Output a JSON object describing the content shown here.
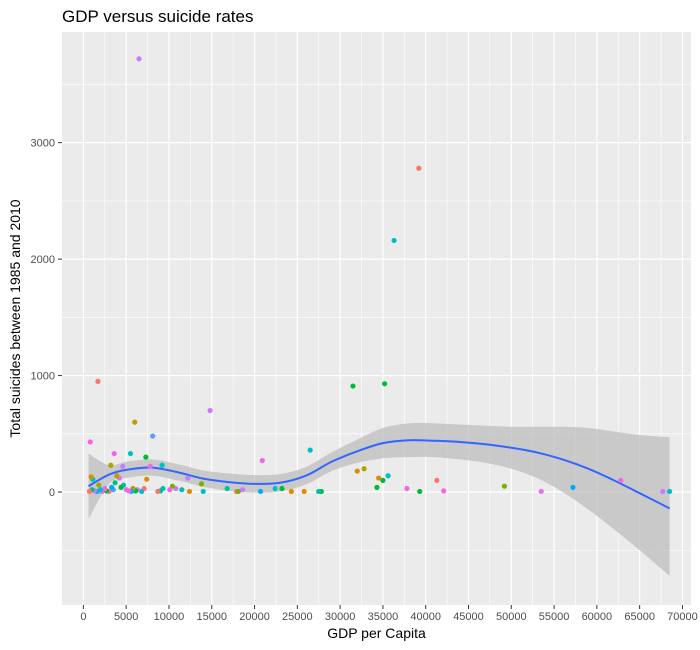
{
  "chart_data": {
    "type": "scatter",
    "title": "GDP versus suicide rates",
    "xlabel": "GDP per Capita",
    "ylabel": "Total suicides between 1985 and 2010",
    "xlim": [
      -2500,
      71000
    ],
    "ylim": [
      -970,
      3950
    ],
    "x_ticks": [
      0,
      5000,
      10000,
      15000,
      20000,
      25000,
      30000,
      35000,
      40000,
      45000,
      50000,
      55000,
      60000,
      65000,
      70000
    ],
    "x_tick_labels": [
      "0",
      "5000",
      "10000",
      "15000",
      "20000",
      "25000",
      "30000",
      "35000",
      "40000",
      "45000",
      "50000",
      "55000",
      "60000",
      "65000",
      "70000"
    ],
    "y_ticks": [
      0,
      1000,
      2000,
      3000
    ],
    "y_tick_labels": [
      "0",
      "1000",
      "2000",
      "3000"
    ],
    "grid": true,
    "legend": "none",
    "colors": {
      "panel": "#ebebeb",
      "grid": "#ffffff",
      "smooth_line": "#3366ff",
      "ribbon": "#bdbdbd"
    },
    "points": [
      {
        "x": 6500,
        "y": 3720,
        "color": "#c77cff"
      },
      {
        "x": 39200,
        "y": 2780,
        "color": "#f8766d"
      },
      {
        "x": 36300,
        "y": 2160,
        "color": "#00bfc4"
      },
      {
        "x": 35200,
        "y": 930,
        "color": "#00ba38"
      },
      {
        "x": 31500,
        "y": 910,
        "color": "#00ba38"
      },
      {
        "x": 1700,
        "y": 950,
        "color": "#f8766d"
      },
      {
        "x": 14800,
        "y": 700,
        "color": "#c77cff"
      },
      {
        "x": 6000,
        "y": 600,
        "color": "#b79f00"
      },
      {
        "x": 8100,
        "y": 480,
        "color": "#619cff"
      },
      {
        "x": 800,
        "y": 430,
        "color": "#f564e3"
      },
      {
        "x": 26500,
        "y": 360,
        "color": "#00bfc4"
      },
      {
        "x": 5500,
        "y": 330,
        "color": "#00bfc4"
      },
      {
        "x": 3600,
        "y": 330,
        "color": "#f564e3"
      },
      {
        "x": 7300,
        "y": 300,
        "color": "#00ba38"
      },
      {
        "x": 20900,
        "y": 270,
        "color": "#f564e3"
      },
      {
        "x": 3200,
        "y": 230,
        "color": "#b79f00"
      },
      {
        "x": 9200,
        "y": 230,
        "color": "#00bfc4"
      },
      {
        "x": 4600,
        "y": 220,
        "color": "#c77cff"
      },
      {
        "x": 32800,
        "y": 200,
        "color": "#b79f00"
      },
      {
        "x": 32000,
        "y": 180,
        "color": "#de8c00"
      },
      {
        "x": 35600,
        "y": 140,
        "color": "#00bfc4"
      },
      {
        "x": 34500,
        "y": 120,
        "color": "#de8c00"
      },
      {
        "x": 12200,
        "y": 120,
        "color": "#c77cff"
      },
      {
        "x": 1100,
        "y": 110,
        "color": "#00bfc4"
      },
      {
        "x": 62800,
        "y": 100,
        "color": "#f564e3"
      },
      {
        "x": 41300,
        "y": 100,
        "color": "#f8766d"
      },
      {
        "x": 35000,
        "y": 100,
        "color": "#00ba38"
      },
      {
        "x": 13800,
        "y": 70,
        "color": "#7cae00"
      },
      {
        "x": 49200,
        "y": 50,
        "color": "#7cae00"
      },
      {
        "x": 57200,
        "y": 40,
        "color": "#00a9ff"
      },
      {
        "x": 34300,
        "y": 40,
        "color": "#00ba38"
      },
      {
        "x": 37800,
        "y": 30,
        "color": "#f564e3"
      },
      {
        "x": 16800,
        "y": 30,
        "color": "#00bfa5"
      },
      {
        "x": 22400,
        "y": 30,
        "color": "#00bfc4"
      },
      {
        "x": 23200,
        "y": 30,
        "color": "#00ba38"
      },
      {
        "x": 18600,
        "y": 20,
        "color": "#c77cff"
      },
      {
        "x": 42100,
        "y": 10,
        "color": "#f564e3"
      },
      {
        "x": 39300,
        "y": 5,
        "color": "#00ba38"
      },
      {
        "x": 53500,
        "y": 5,
        "color": "#e76bf3"
      },
      {
        "x": 67700,
        "y": 5,
        "color": "#c77cff"
      },
      {
        "x": 68500,
        "y": 5,
        "color": "#00bfc4"
      },
      {
        "x": 27800,
        "y": 5,
        "color": "#00ba38"
      },
      {
        "x": 27500,
        "y": 5,
        "color": "#00bfa5"
      },
      {
        "x": 25800,
        "y": 5,
        "color": "#de8c00"
      },
      {
        "x": 24300,
        "y": 5,
        "color": "#de8c00"
      },
      {
        "x": 20700,
        "y": 5,
        "color": "#00a9ff"
      },
      {
        "x": 17900,
        "y": 5,
        "color": "#f8766d"
      },
      {
        "x": 14000,
        "y": 5,
        "color": "#00bfc4"
      },
      {
        "x": 12400,
        "y": 5,
        "color": "#de8c00"
      },
      {
        "x": 11500,
        "y": 20,
        "color": "#00bfa5"
      },
      {
        "x": 10800,
        "y": 30,
        "color": "#c77cff"
      },
      {
        "x": 10400,
        "y": 50,
        "color": "#7cae00"
      },
      {
        "x": 10100,
        "y": 20,
        "color": "#f564e3"
      },
      {
        "x": 9300,
        "y": 30,
        "color": "#00bfc4"
      },
      {
        "x": 9000,
        "y": 10,
        "color": "#00c08b"
      },
      {
        "x": 8700,
        "y": 5,
        "color": "#f8766d"
      },
      {
        "x": 7800,
        "y": 220,
        "color": "#e76bf3"
      },
      {
        "x": 7400,
        "y": 110,
        "color": "#de8c00"
      },
      {
        "x": 7100,
        "y": 30,
        "color": "#f8766d"
      },
      {
        "x": 6800,
        "y": 5,
        "color": "#00bfc4"
      },
      {
        "x": 6300,
        "y": 20,
        "color": "#e76bf3"
      },
      {
        "x": 6100,
        "y": 10,
        "color": "#00ba38"
      },
      {
        "x": 5800,
        "y": 30,
        "color": "#a3a500"
      },
      {
        "x": 5600,
        "y": 5,
        "color": "#00b0f6"
      },
      {
        "x": 5300,
        "y": 10,
        "color": "#f564e3"
      },
      {
        "x": 5000,
        "y": 20,
        "color": "#e76bf3"
      },
      {
        "x": 4700,
        "y": 60,
        "color": "#00bfc4"
      },
      {
        "x": 4400,
        "y": 40,
        "color": "#00ba38"
      },
      {
        "x": 4200,
        "y": 120,
        "color": "#e76bf3"
      },
      {
        "x": 3900,
        "y": 140,
        "color": "#b79f00"
      },
      {
        "x": 3700,
        "y": 80,
        "color": "#00bf7d"
      },
      {
        "x": 3500,
        "y": 20,
        "color": "#619cff"
      },
      {
        "x": 3300,
        "y": 40,
        "color": "#00a9ff"
      },
      {
        "x": 3000,
        "y": 5,
        "color": "#f8766d"
      },
      {
        "x": 2700,
        "y": 10,
        "color": "#00ba38"
      },
      {
        "x": 2500,
        "y": 30,
        "color": "#e76bf3"
      },
      {
        "x": 2200,
        "y": 5,
        "color": "#f564e3"
      },
      {
        "x": 2000,
        "y": 20,
        "color": "#00bfc4"
      },
      {
        "x": 1800,
        "y": 60,
        "color": "#a3a500"
      },
      {
        "x": 1600,
        "y": 5,
        "color": "#00a9ff"
      },
      {
        "x": 1300,
        "y": 10,
        "color": "#c77cff"
      },
      {
        "x": 1000,
        "y": 20,
        "color": "#00bf7d"
      },
      {
        "x": 700,
        "y": 5,
        "color": "#f8766d"
      },
      {
        "x": 900,
        "y": 130,
        "color": "#de8c00"
      },
      {
        "x": 18100,
        "y": 5,
        "color": "#7cae00"
      }
    ],
    "smooth": {
      "x": [
        600,
        3000,
        5000,
        8000,
        11000,
        14000,
        17000,
        20000,
        23000,
        26000,
        29000,
        32000,
        35000,
        38000,
        41000,
        44000,
        47000,
        50000,
        53000,
        56000,
        59000,
        62000,
        65000,
        68500
      ],
      "y": [
        50,
        150,
        190,
        210,
        170,
        115,
        85,
        70,
        80,
        140,
        260,
        350,
        420,
        445,
        440,
        430,
        410,
        380,
        340,
        280,
        200,
        100,
        -10,
        -140
      ],
      "lower": [
        -230,
        70,
        120,
        140,
        100,
        45,
        10,
        -5,
        5,
        65,
        180,
        250,
        290,
        300,
        300,
        280,
        250,
        200,
        120,
        0,
        -150,
        -320,
        -500,
        -720
      ],
      "upper": [
        330,
        230,
        260,
        280,
        240,
        185,
        160,
        145,
        155,
        215,
        340,
        450,
        550,
        590,
        590,
        580,
        570,
        560,
        560,
        560,
        550,
        520,
        490,
        470
      ]
    }
  }
}
